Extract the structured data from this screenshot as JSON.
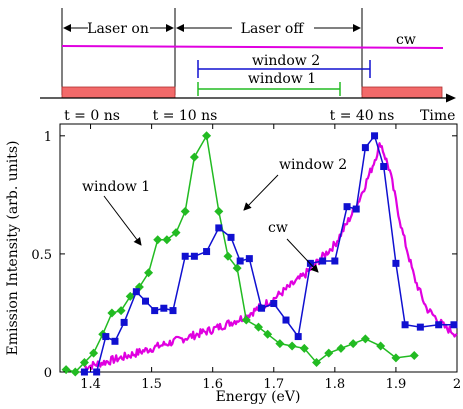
{
  "timing": {
    "labels": {
      "laser_on": "Laser on",
      "laser_off": "Laser off",
      "cw": "cw",
      "window2": "window 2",
      "window1": "window 1",
      "t0": "t = 0 ns",
      "t10": "t = 10 ns",
      "t40": "t = 40 ns",
      "time": "Time"
    },
    "colors": {
      "pulse": "#f26a6a",
      "cw": "#e000e0",
      "window2": "#1010d0",
      "window1": "#22bb22"
    }
  },
  "chart_data": {
    "type": "line",
    "title": "",
    "xlabel": "Energy (eV)",
    "ylabel": "Emission Intensity (arb. units)",
    "xlim": [
      1.35,
      2.0
    ],
    "ylim": [
      0,
      1.05
    ],
    "xticks": [
      1.4,
      1.5,
      1.6,
      1.7,
      1.8,
      1.9,
      2.0
    ],
    "xtick_labels": [
      "1.4",
      "1.5",
      "1.6",
      "1.7",
      "1.8",
      "1.9",
      "2"
    ],
    "yticks": [
      0,
      0.5,
      1
    ],
    "ytick_labels": [
      "0",
      "0.5",
      "1"
    ],
    "grid": false,
    "series": [
      {
        "name": "window 1",
        "color": "#22bb22",
        "marker": "diamond",
        "x": [
          1.36,
          1.375,
          1.39,
          1.405,
          1.42,
          1.435,
          1.45,
          1.465,
          1.48,
          1.495,
          1.51,
          1.525,
          1.54,
          1.555,
          1.57,
          1.59,
          1.61,
          1.625,
          1.64,
          1.655,
          1.675,
          1.69,
          1.71,
          1.73,
          1.75,
          1.77,
          1.79,
          1.81,
          1.83,
          1.85,
          1.875,
          1.9,
          1.93
        ],
        "y": [
          0.01,
          0.0,
          0.04,
          0.08,
          0.16,
          0.25,
          0.26,
          0.32,
          0.36,
          0.42,
          0.56,
          0.56,
          0.59,
          0.68,
          0.91,
          1.0,
          0.68,
          0.49,
          0.44,
          0.22,
          0.19,
          0.16,
          0.12,
          0.11,
          0.1,
          0.04,
          0.08,
          0.1,
          0.12,
          0.14,
          0.11,
          0.06,
          0.07
        ]
      },
      {
        "name": "window 2",
        "color": "#1010d0",
        "marker": "square",
        "x": [
          1.39,
          1.41,
          1.425,
          1.44,
          1.455,
          1.475,
          1.49,
          1.505,
          1.52,
          1.535,
          1.555,
          1.57,
          1.59,
          1.61,
          1.63,
          1.645,
          1.66,
          1.68,
          1.7,
          1.72,
          1.74,
          1.76,
          1.78,
          1.8,
          1.82,
          1.835,
          1.85,
          1.865,
          1.88,
          1.9,
          1.915,
          1.94,
          1.97,
          1.995
        ],
        "y": [
          0.0,
          0.0,
          0.15,
          0.13,
          0.21,
          0.34,
          0.3,
          0.26,
          0.27,
          0.26,
          0.49,
          0.49,
          0.51,
          0.61,
          0.57,
          0.47,
          0.48,
          0.27,
          0.29,
          0.22,
          0.15,
          0.46,
          0.47,
          0.47,
          0.7,
          0.69,
          0.95,
          1.0,
          0.87,
          0.46,
          0.2,
          0.19,
          0.2,
          0.2
        ]
      },
      {
        "name": "cw",
        "color": "#e000e0",
        "marker": "none",
        "x": [
          1.39,
          1.42,
          1.45,
          1.5,
          1.55,
          1.6,
          1.65,
          1.7,
          1.75,
          1.8,
          1.82,
          1.84,
          1.86,
          1.875,
          1.89,
          1.91,
          1.93,
          1.95,
          1.98,
          2.0
        ],
        "y": [
          0.02,
          0.04,
          0.06,
          0.1,
          0.14,
          0.18,
          0.23,
          0.31,
          0.41,
          0.54,
          0.63,
          0.73,
          0.86,
          0.97,
          0.85,
          0.6,
          0.4,
          0.27,
          0.19,
          0.16
        ]
      }
    ],
    "annotations": [
      "window 1",
      "window 2",
      "cw"
    ]
  }
}
